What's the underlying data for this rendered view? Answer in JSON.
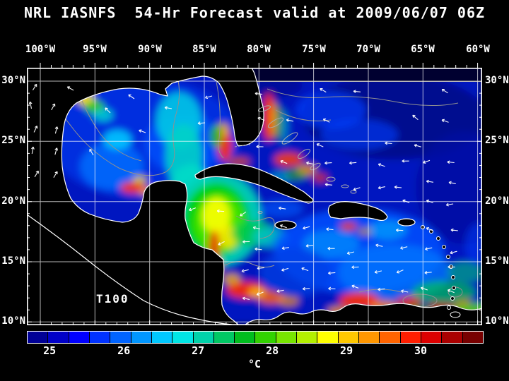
{
  "title": "NRL IASNFS  54-Hr Forecast valid at 2009/06/07 06Z",
  "map": {
    "annotation": "T100",
    "axes": {
      "top": [
        "100°W",
        "95°W",
        "90°W",
        "85°W",
        "80°W",
        "75°W",
        "70°W",
        "65°W",
        "60°W"
      ],
      "left": [
        "30°N",
        "25°N",
        "20°N",
        "15°N",
        "10°N"
      ],
      "right": [
        "30°N",
        "25°N",
        "20°N",
        "15°N",
        "10°N"
      ]
    }
  },
  "colorbar": {
    "unit": "°C",
    "tick_labels": [
      "25",
      "26",
      "27",
      "28",
      "29",
      "30"
    ],
    "tick_positions_pct": [
      5,
      21.3,
      37.6,
      53.9,
      70.2,
      86.5
    ],
    "segment_colors": [
      "#000096",
      "#0000c8",
      "#0000ff",
      "#0032ff",
      "#0064ff",
      "#0096ff",
      "#00c8ff",
      "#00e6e6",
      "#00d2aa",
      "#00c864",
      "#00be1e",
      "#32d200",
      "#78e600",
      "#b4f000",
      "#ffff00",
      "#ffc800",
      "#ff9600",
      "#ff6400",
      "#ff1e00",
      "#dc0000",
      "#aa0000",
      "#780000"
    ]
  },
  "chart_data": {
    "type": "heatmap",
    "title": "NRL IASNFS 54-Hr Forecast valid at 2009/06/07 06Z",
    "variable": "T100",
    "units": "°C",
    "x_ticks": [
      "100°W",
      "95°W",
      "90°W",
      "85°W",
      "80°W",
      "75°W",
      "70°W",
      "65°W",
      "60°W"
    ],
    "y_ticks": [
      "30°N",
      "25°N",
      "20°N",
      "15°N",
      "10°N"
    ],
    "colorbar_ticks": [
      25,
      26,
      27,
      28,
      29,
      30
    ]
  }
}
